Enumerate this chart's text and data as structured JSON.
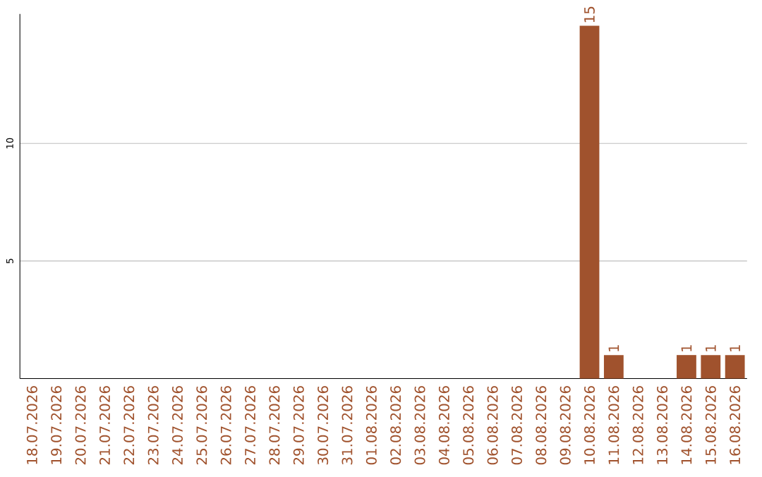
{
  "chart_data": {
    "type": "bar",
    "categories": [
      "18.07.2026",
      "19.07.2026",
      "20.07.2026",
      "21.07.2026",
      "22.07.2026",
      "23.07.2026",
      "24.07.2026",
      "25.07.2026",
      "26.07.2026",
      "27.07.2026",
      "28.07.2026",
      "29.07.2026",
      "30.07.2026",
      "31.07.2026",
      "01.08.2026",
      "02.08.2026",
      "03.08.2026",
      "04.08.2026",
      "05.08.2026",
      "06.08.2026",
      "07.08.2026",
      "08.08.2026",
      "09.08.2026",
      "10.08.2026",
      "11.08.2026",
      "12.08.2026",
      "13.08.2026",
      "14.08.2026",
      "15.08.2026",
      "16.08.2026"
    ],
    "values": [
      0,
      0,
      0,
      0,
      0,
      0,
      0,
      0,
      0,
      0,
      0,
      0,
      0,
      0,
      0,
      0,
      0,
      0,
      0,
      0,
      0,
      0,
      0,
      15,
      1,
      0,
      0,
      1,
      1,
      1
    ],
    "value_labels": [
      null,
      null,
      null,
      null,
      null,
      null,
      null,
      null,
      null,
      null,
      null,
      null,
      null,
      null,
      null,
      null,
      null,
      null,
      null,
      null,
      null,
      null,
      null,
      "15",
      "1",
      null,
      null,
      "1",
      "1",
      "1"
    ],
    "color": "#a0522d",
    "ylim": [
      0,
      15.5
    ],
    "yticks": [
      5,
      10
    ],
    "grid": "y"
  }
}
